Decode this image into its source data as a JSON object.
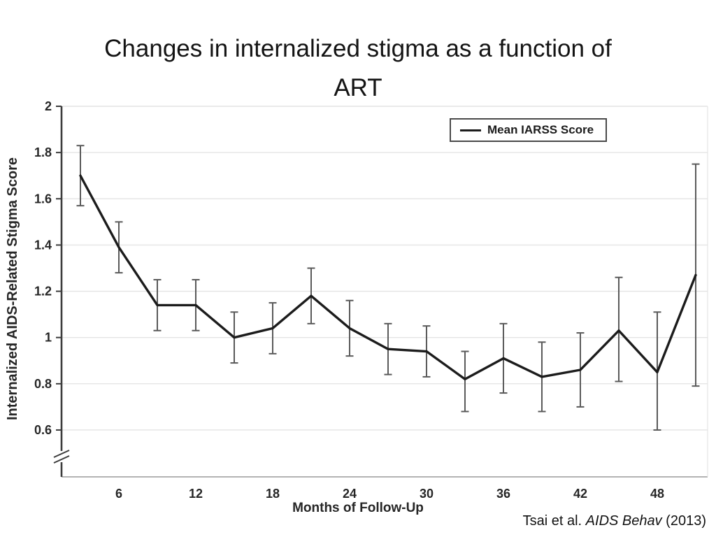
{
  "slide": {
    "title_line1": "Changes in internalized stigma as a function of",
    "title_line2": "ART",
    "citation": {
      "pre": "Tsai et al. ",
      "italic": "AIDS Behav",
      "post": " (2013)"
    }
  },
  "chart_data": {
    "type": "line",
    "title": "",
    "xlabel": "Months of Follow-Up",
    "ylabel": "Internalized AIDS-Related Stigma Score",
    "legend": {
      "position": "top-right",
      "entries": [
        "Mean IARSS Score"
      ]
    },
    "x": [
      3,
      6,
      9,
      12,
      15,
      18,
      21,
      24,
      27,
      30,
      33,
      36,
      39,
      42,
      45,
      48,
      51
    ],
    "series": [
      {
        "name": "Mean IARSS Score",
        "values": [
          1.7,
          1.39,
          1.14,
          1.14,
          1.0,
          1.04,
          1.18,
          1.04,
          0.95,
          0.94,
          0.82,
          0.91,
          0.83,
          0.86,
          1.03,
          0.85,
          1.27
        ],
        "ci_low": [
          1.57,
          1.28,
          1.03,
          1.03,
          0.89,
          0.93,
          1.06,
          0.92,
          0.84,
          0.83,
          0.68,
          0.76,
          0.68,
          0.7,
          0.81,
          0.6,
          0.79
        ],
        "ci_high": [
          1.83,
          1.5,
          1.25,
          1.25,
          1.11,
          1.15,
          1.3,
          1.16,
          1.06,
          1.05,
          0.94,
          1.06,
          0.98,
          1.02,
          1.26,
          1.11,
          1.75
        ]
      }
    ],
    "x_ticks": [
      6,
      12,
      18,
      24,
      30,
      36,
      42,
      48
    ],
    "y_ticks": [
      {
        "value": 2.0,
        "label": "2"
      },
      {
        "value": 1.8,
        "label": "1.8"
      },
      {
        "value": 1.6,
        "label": "1.6"
      },
      {
        "value": 1.4,
        "label": "1.4"
      },
      {
        "value": 1.2,
        "label": "1.2"
      },
      {
        "value": 1.0,
        "label": "1"
      },
      {
        "value": 0.8,
        "label": "0.8"
      },
      {
        "value": 0.6,
        "label": "0.6"
      }
    ],
    "axis_break": true,
    "grid": "horizontal",
    "ylim": [
      0.6,
      2.0
    ],
    "colors": {
      "line": "#1c1c1c",
      "error_bar": "#5a5a5a",
      "grid": "#e4e4e4",
      "y_axis": "#3c3c3c",
      "x_axis": "#9a9a9a",
      "text": "#262626"
    }
  }
}
